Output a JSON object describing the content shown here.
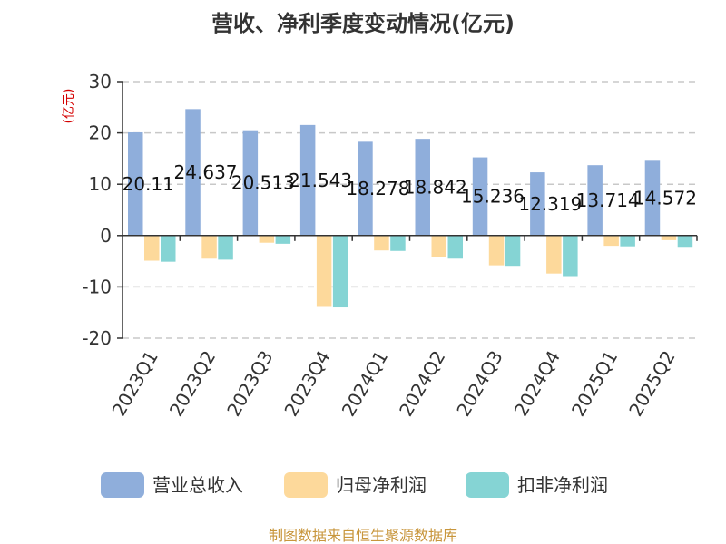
{
  "chart_data": {
    "type": "bar",
    "title": "营收、净利季度变动情况(亿元)",
    "ylabel": "(亿元)",
    "ylim": [
      -20,
      30
    ],
    "yticks": [
      30,
      20,
      10,
      0,
      -10,
      -20
    ],
    "grid": true,
    "legend_position": "bottom",
    "categories": [
      "2023Q1",
      "2023Q2",
      "2023Q3",
      "2023Q4",
      "2024Q1",
      "2024Q2",
      "2024Q3",
      "2024Q4",
      "2025Q1",
      "2025Q2"
    ],
    "series": [
      {
        "name": "营业总收入",
        "color": "#8faedb",
        "values": [
          20.11,
          24.637,
          20.513,
          21.543,
          18.278,
          18.842,
          15.236,
          12.319,
          13.714,
          14.572
        ],
        "labels": [
          "20.11",
          "24.637",
          "20.513",
          "21.543",
          "18.278",
          "18.842",
          "15.236",
          "12.319",
          "13.714",
          "14.572"
        ]
      },
      {
        "name": "归母净利润",
        "color": "#fdd99b",
        "values": [
          -4.9,
          -4.5,
          -1.4,
          -13.9,
          -2.9,
          -4.1,
          -5.8,
          -7.4,
          -2.0,
          -0.9
        ]
      },
      {
        "name": "扣非净利润",
        "color": "#85d4d4",
        "values": [
          -5.1,
          -4.7,
          -1.6,
          -14.0,
          -3.0,
          -4.5,
          -5.9,
          -7.9,
          -2.1,
          -2.2
        ]
      }
    ]
  },
  "source": "制图数据来自恒生聚源数据库"
}
